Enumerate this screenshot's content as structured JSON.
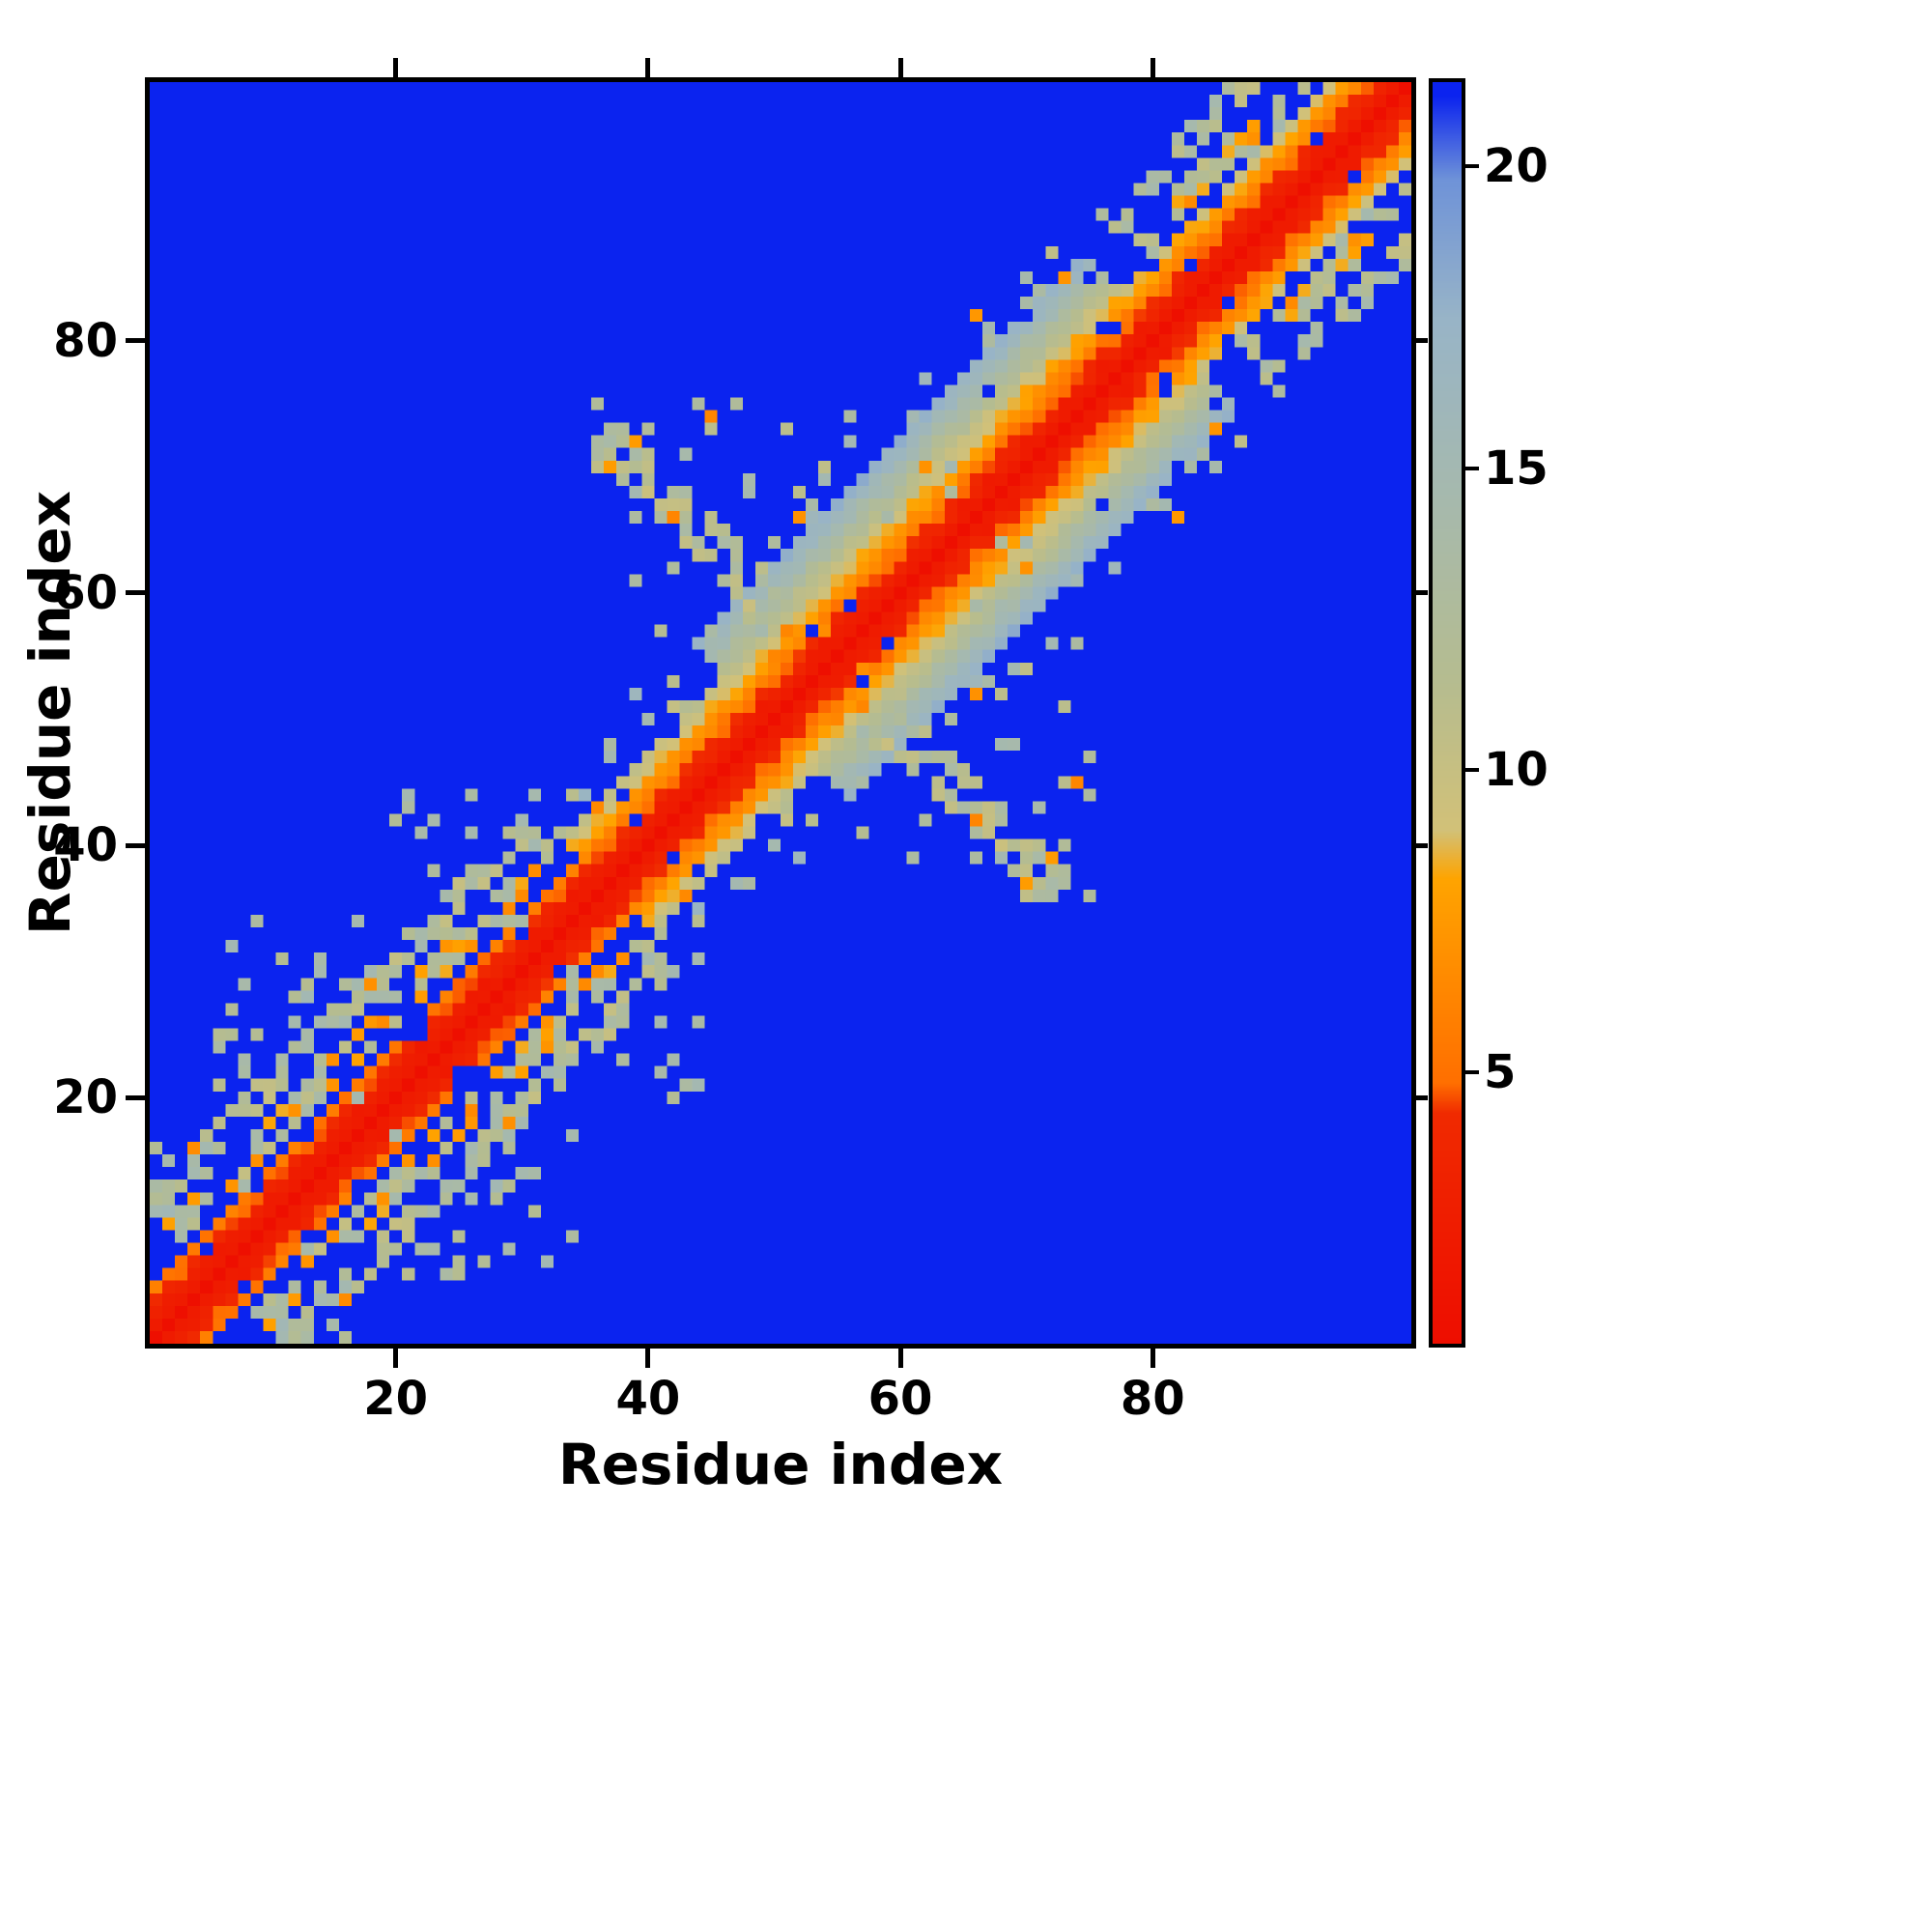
{
  "chart_data": {
    "type": "heatmap",
    "title": "",
    "xlabel": "Residue index",
    "ylabel": "Residue index",
    "x_range": [
      0.5,
      100.5
    ],
    "y_range": [
      0.5,
      100.5
    ],
    "x_ticks": [
      20,
      40,
      60,
      80
    ],
    "y_ticks": [
      20,
      40,
      60,
      80
    ],
    "grid": false,
    "colorbar": {
      "range": [
        0.5,
        21.4
      ],
      "ticks": [
        5,
        10,
        15,
        20
      ],
      "position": "right"
    },
    "colors": {
      "background_blue": "#0b23ef",
      "diagonal_red": "#ee0e00",
      "near_band_orange": "#ff8c00",
      "mid_sage": "#b5bc90",
      "far_pale_blue": "#98b4c7",
      "axis_black": "#000000"
    },
    "colormap_stops": [
      [
        0.5,
        "#ee0e00"
      ],
      [
        4.3,
        "#f02a00"
      ],
      [
        4.8,
        "#ff6f00"
      ],
      [
        8.2,
        "#ffa400"
      ],
      [
        9.0,
        "#d2c178"
      ],
      [
        11.5,
        "#b5bc90"
      ],
      [
        14.5,
        "#a6b9ad"
      ],
      [
        17.5,
        "#98b4c7"
      ],
      [
        19.8,
        "#6f93d8"
      ],
      [
        21.2,
        "#0b23ef"
      ],
      [
        22.0,
        "#0b23ef"
      ]
    ],
    "matrix_spec": {
      "n": 100,
      "background_value": 22,
      "diag_value": 0.6,
      "regions": [
        {
          "m0": 0,
          "m1": 37,
          "hw": 4,
          "slope": 1.35,
          "hole_p": 0.1,
          "halo": 11,
          "halo_p": 0.1,
          "stripes": true,
          "stripe_m0": 6,
          "stripe_m1": 36
        },
        {
          "m0": 37,
          "m1": 50,
          "hw": 7,
          "slope": 1.5,
          "hole_p": 0.07,
          "halo": 6,
          "halo_p": 0.12,
          "stripes": false,
          "stripe_m0": 0,
          "stripe_m1": 0
        },
        {
          "m0": 50,
          "m1": 81,
          "hw": 12,
          "slope": 1.45,
          "hole_p": 0.04,
          "halo": 4,
          "halo_p": 0.1,
          "stripes": false,
          "stripe_m0": 0,
          "stripe_m1": 0
        },
        {
          "m0": 81,
          "m1": 101,
          "hw": 6,
          "slope": 1.5,
          "hole_p": 0.09,
          "halo": 8,
          "halo_p": 0.12,
          "stripes": true,
          "stripe_m0": 83,
          "stripe_m1": 99
        }
      ],
      "stripe": {
        "p_fill": 0.6,
        "p_orange": 0.4,
        "gap_p": 0.08
      },
      "cross": {
        "center_sum": 109,
        "halfwidth": 2,
        "lo": 36,
        "hi": 78,
        "density": 0.62
      },
      "clusters": [
        {
          "a0": 6,
          "a1": 18,
          "b0": 20,
          "b1": 34,
          "p": 0.1
        },
        {
          "a0": 18,
          "a1": 32,
          "b0": 34,
          "b1": 44,
          "p": 0.05
        },
        {
          "a0": 36,
          "a1": 52,
          "b0": 56,
          "b1": 76,
          "p": 0.08
        },
        {
          "a0": 56,
          "a1": 66,
          "b0": 66,
          "b1": 74,
          "p": 0.05
        },
        {
          "a0": 84,
          "a1": 92,
          "b0": 93,
          "b1": 99,
          "p": 0.06
        }
      ],
      "orange_speck_p": 0.025
    }
  }
}
